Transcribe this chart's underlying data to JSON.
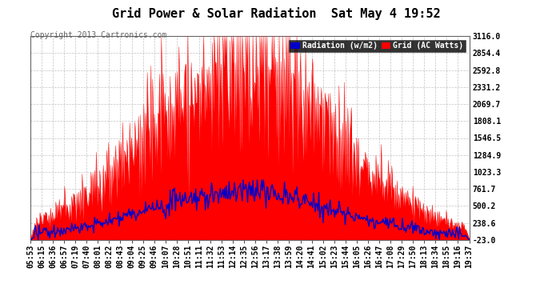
{
  "title": "Grid Power & Solar Radiation  Sat May 4 19:52",
  "copyright": "Copyright 2013 Cartronics.com",
  "ylabel_right": [
    "3116.0",
    "2854.4",
    "2592.8",
    "2331.2",
    "2069.7",
    "1808.1",
    "1546.5",
    "1284.9",
    "1023.3",
    "761.7",
    "500.2",
    "238.6",
    "-23.0"
  ],
  "ytick_values": [
    3116.0,
    2854.4,
    2592.8,
    2331.2,
    2069.7,
    1808.1,
    1546.5,
    1284.9,
    1023.3,
    761.7,
    500.2,
    238.6,
    -23.0
  ],
  "ymin": -23.0,
  "ymax": 3116.0,
  "x_labels": [
    "05:53",
    "06:15",
    "06:36",
    "06:57",
    "07:19",
    "07:40",
    "08:01",
    "08:22",
    "08:43",
    "09:04",
    "09:25",
    "09:46",
    "10:07",
    "10:28",
    "10:51",
    "11:11",
    "11:32",
    "11:53",
    "12:14",
    "12:35",
    "12:56",
    "13:17",
    "13:38",
    "13:59",
    "14:20",
    "14:41",
    "15:02",
    "15:23",
    "15:44",
    "16:05",
    "16:26",
    "16:47",
    "17:08",
    "17:29",
    "17:50",
    "18:13",
    "18:34",
    "18:55",
    "19:16",
    "19:37"
  ],
  "bg_color": "#ffffff",
  "plot_bg_color": "#ffffff",
  "grid_color": "#aaaaaa",
  "solar_fill_color": "#ff0000",
  "solar_line_color": "#ff0000",
  "radiation_line_color": "#0000cc",
  "legend_radiation_bg": "#0000cc",
  "legend_grid_bg": "#ff0000",
  "title_fontsize": 11,
  "copyright_fontsize": 7,
  "tick_fontsize": 7
}
